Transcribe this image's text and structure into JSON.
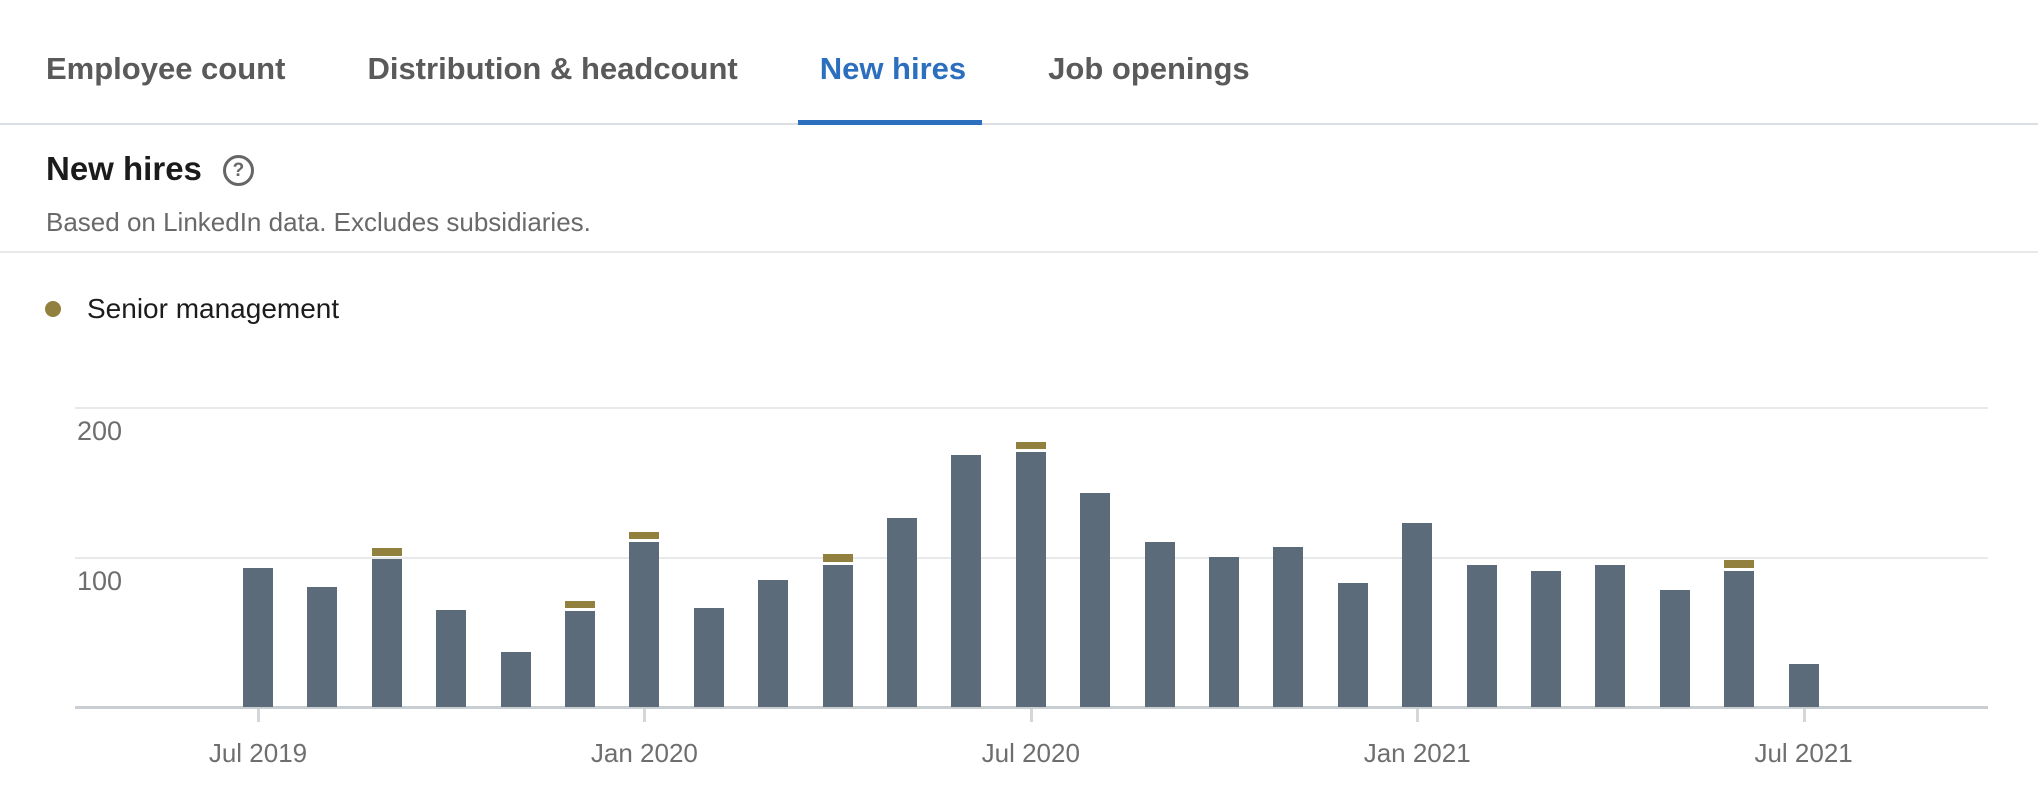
{
  "tabs": {
    "items": [
      {
        "label": "Employee count",
        "active": false
      },
      {
        "label": "Distribution & headcount",
        "active": false
      },
      {
        "label": "New hires",
        "active": true
      },
      {
        "label": "Job openings",
        "active": false
      }
    ]
  },
  "header": {
    "title": "New hires",
    "help_glyph": "?",
    "subtitle": "Based on LinkedIn data. Excludes subsidiaries."
  },
  "legend": {
    "items": [
      {
        "label": "Senior management",
        "color": "#92803f"
      }
    ]
  },
  "colors": {
    "bar": "#5c6b7a",
    "senior_cap": "#92803f",
    "active_tab": "#2c6fbe",
    "gridline": "#e8e9ea",
    "axis_line": "#c9ced3",
    "tick": "#d4d7da"
  },
  "chart_data": {
    "type": "bar",
    "stacked": true,
    "title": "New hires",
    "xlabel": "",
    "ylabel": "",
    "grid": "horizontal",
    "legend_position": "top-left",
    "categories": [
      "Jul 2019",
      "Aug 2019",
      "Sep 2019",
      "Oct 2019",
      "Nov 2019",
      "Dec 2019",
      "Jan 2020",
      "Feb 2020",
      "Mar 2020",
      "Apr 2020",
      "May 2020",
      "Jun 2020",
      "Jul 2020",
      "Aug 2020",
      "Sep 2020",
      "Oct 2020",
      "Nov 2020",
      "Dec 2020",
      "Jan 2021",
      "Feb 2021",
      "Mar 2021",
      "Apr 2021",
      "May 2021",
      "Jun 2021",
      "Jul 2021"
    ],
    "series": [
      {
        "name": "New hires",
        "values": [
          93,
          80,
          99,
          65,
          37,
          64,
          110,
          66,
          85,
          95,
          126,
          168,
          170,
          143,
          110,
          100,
          107,
          83,
          123,
          95,
          91,
          95,
          78,
          91,
          29
        ]
      },
      {
        "name": "Senior management",
        "values": [
          0,
          0,
          5,
          0,
          0,
          5,
          5,
          0,
          0,
          5,
          0,
          0,
          5,
          0,
          0,
          0,
          0,
          0,
          0,
          0,
          0,
          0,
          0,
          5,
          0
        ]
      }
    ],
    "x_tick_labels": [
      "Jul 2019",
      "Jan 2020",
      "Jul 2020",
      "Jan 2021",
      "Jul 2021"
    ],
    "x_tick_indices": [
      0,
      6,
      12,
      18,
      24
    ],
    "y_ticks": [
      200,
      100
    ],
    "ylim": [
      0,
      220
    ]
  }
}
